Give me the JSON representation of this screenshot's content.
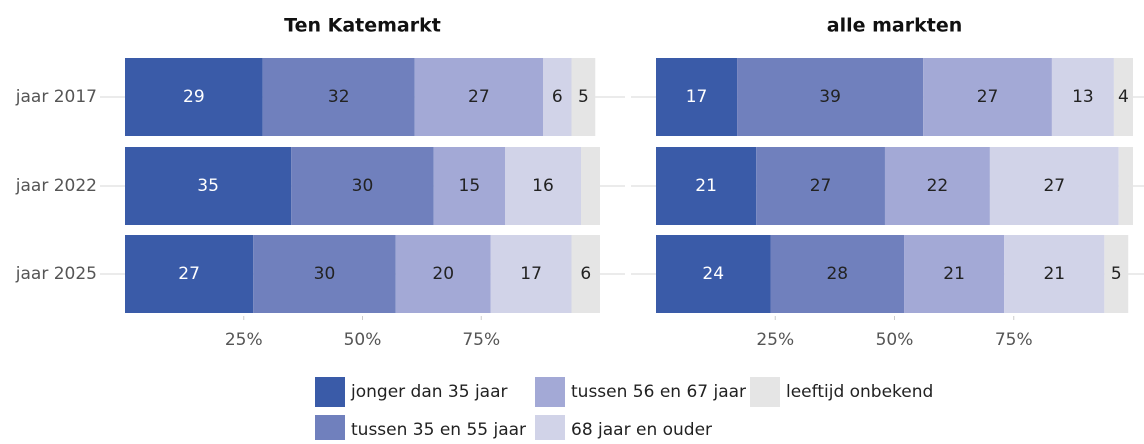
{
  "chart_data": [
    {
      "type": "bar",
      "title": "Ten Katemarkt",
      "categories": [
        "jaar 2017",
        "jaar 2022",
        "jaar 2025"
      ],
      "series": [
        {
          "name": "jonger dan 35 jaar",
          "color": "#3a5ba8",
          "values": [
            29,
            35,
            27
          ]
        },
        {
          "name": "tussen 35 en 55 jaar",
          "color": "#7080bd",
          "values": [
            32,
            30,
            30
          ]
        },
        {
          "name": "tussen 56 en 67 jaar",
          "color": "#a3a9d6",
          "values": [
            27,
            15,
            20
          ]
        },
        {
          "name": "68 jaar en ouder",
          "color": "#d1d3e8",
          "values": [
            6,
            16,
            17
          ]
        },
        {
          "name": "leeftijd onbekend",
          "color": "#e5e5e5",
          "values": [
            5,
            4,
            6
          ],
          "value_labels": [
            "5",
            null,
            "6"
          ]
        }
      ],
      "xlim": [
        0,
        100
      ],
      "xticks": [
        {
          "value": 25,
          "label": "25%"
        },
        {
          "value": 50,
          "label": "50%"
        },
        {
          "value": 75,
          "label": "75%"
        }
      ]
    },
    {
      "type": "bar",
      "title": "alle markten",
      "series": [
        {
          "color": "#3a5ba8",
          "values": [
            17,
            21,
            24
          ]
        },
        {
          "color": "#7080bd",
          "values": [
            39,
            27,
            28
          ]
        },
        {
          "color": "#a3a9d6",
          "values": [
            27,
            22,
            21
          ]
        },
        {
          "color": "#d1d3e8",
          "values": [
            13,
            27,
            21
          ]
        },
        {
          "color": "#e5e5e5",
          "values": [
            4,
            3,
            5
          ],
          "value_labels": [
            "4",
            null,
            "5"
          ]
        }
      ],
      "xlim": [
        0,
        100
      ],
      "xticks": [
        {
          "value": 25,
          "label": "25%"
        },
        {
          "value": 50,
          "label": "50%"
        },
        {
          "value": 75,
          "label": "75%"
        }
      ]
    }
  ]
}
